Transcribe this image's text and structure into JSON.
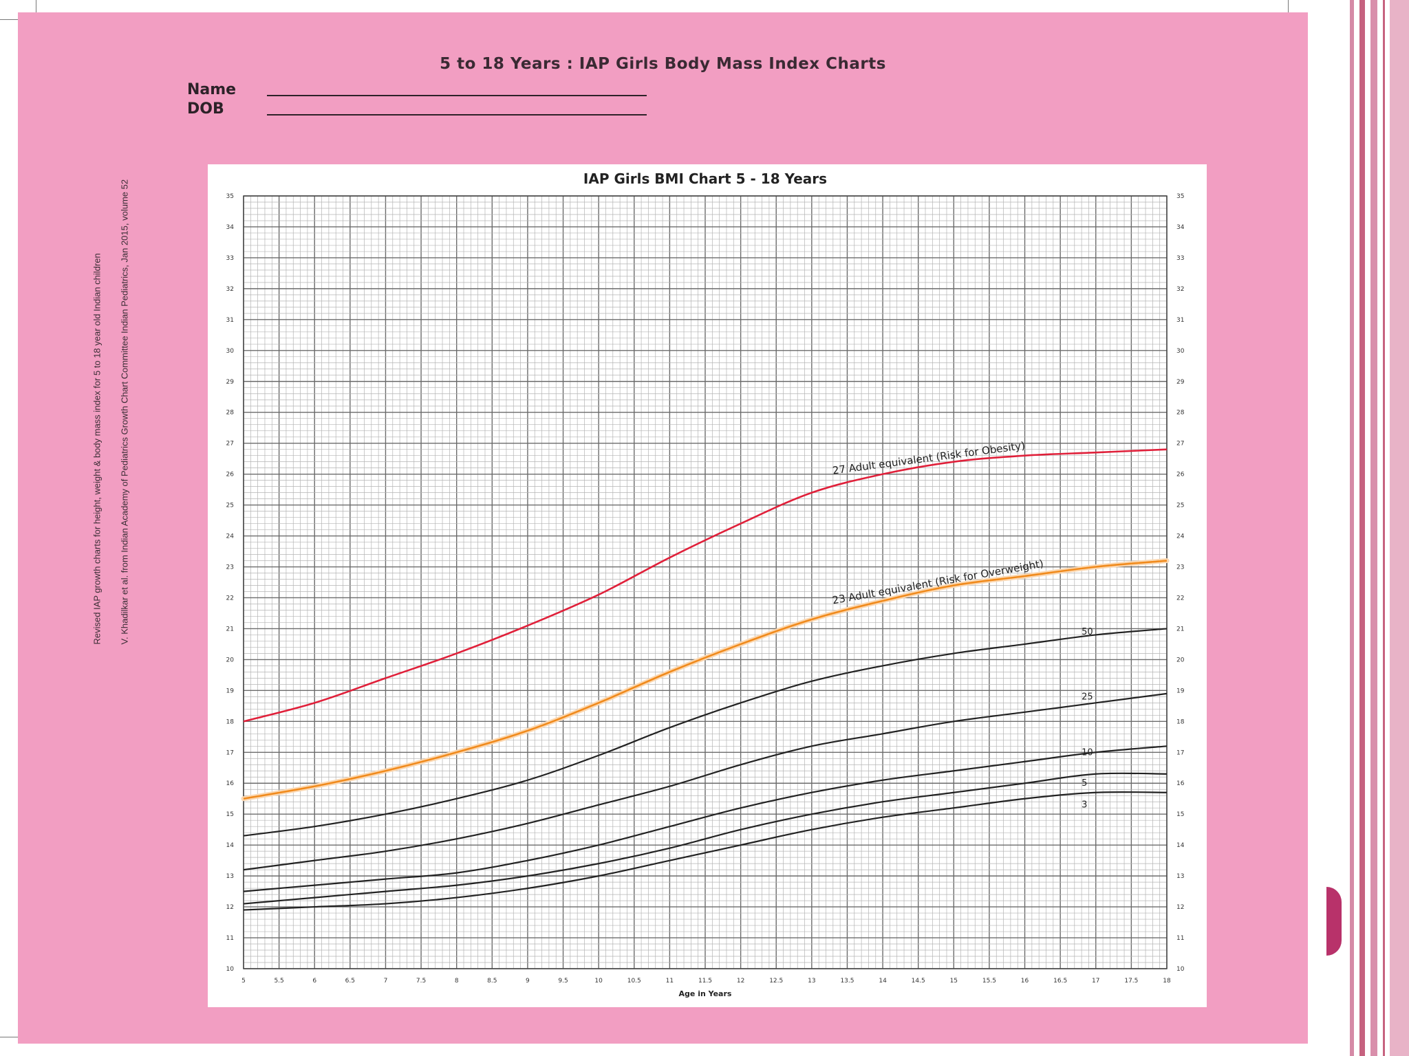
{
  "sheet": {
    "title": "5 to 18 Years : IAP Girls Body Mass Index Charts",
    "name_label": "Name",
    "dob_label": "DOB",
    "side_note_line1": "Revised IAP growth charts for height, weight & body mass index for 5 to 18 year old Indian children",
    "side_note_line2": "V. Khadilkar et al. from Indian Academy of Pediatrics Growth Chart Committee Indian Pediatrics, Jan 2015, volume 52"
  },
  "colors": {
    "sheet_background": "#f29ec2",
    "obesity_line": "#e0203a",
    "overweight_line": "#f08a1c",
    "percentile_line": "#222222",
    "accent_bar": "#b8326a"
  },
  "chart_data": {
    "type": "line",
    "title": "IAP Girls BMI Chart 5 - 18 Years",
    "xlabel": "Age in Years",
    "ylabel": "",
    "xlim": [
      5,
      18
    ],
    "ylim": [
      10,
      35
    ],
    "x_ticks": [
      "5",
      "5.5",
      "6",
      "6.5",
      "7",
      "7.5",
      "8",
      "8.5",
      "9",
      "9.5",
      "10",
      "10.5",
      "11",
      "11.5",
      "12",
      "12.5",
      "13",
      "13.5",
      "14",
      "14.5",
      "15",
      "15.5",
      "16",
      "16.5",
      "17",
      "17.5",
      "18"
    ],
    "y_ticks": [
      "10",
      "11",
      "12",
      "13",
      "14",
      "15",
      "16",
      "17",
      "18",
      "19",
      "20",
      "21",
      "22",
      "23",
      "24",
      "25",
      "26",
      "27",
      "28",
      "29",
      "30",
      "31",
      "32",
      "33",
      "34",
      "35"
    ],
    "grid": true,
    "x": [
      5,
      6,
      7,
      8,
      9,
      10,
      11,
      12,
      13,
      14,
      15,
      16,
      17,
      18
    ],
    "series": [
      {
        "name": "27 Adult equivalent (Risk for Obesity)",
        "color": "#e0203a",
        "values": [
          18.0,
          18.6,
          19.4,
          20.2,
          21.1,
          22.1,
          23.3,
          24.4,
          25.4,
          26.0,
          26.4,
          26.6,
          26.7,
          26.8
        ]
      },
      {
        "name": "23 Adult equivalent (Risk for Overweight)",
        "color": "#f08a1c",
        "values": [
          15.5,
          15.9,
          16.4,
          17.0,
          17.7,
          18.6,
          19.6,
          20.5,
          21.3,
          21.9,
          22.4,
          22.7,
          23.0,
          23.2
        ]
      },
      {
        "name": "50",
        "color": "#222222",
        "values": [
          14.3,
          14.6,
          15.0,
          15.5,
          16.1,
          16.9,
          17.8,
          18.6,
          19.3,
          19.8,
          20.2,
          20.5,
          20.8,
          21.0
        ]
      },
      {
        "name": "25",
        "color": "#222222",
        "values": [
          13.2,
          13.5,
          13.8,
          14.2,
          14.7,
          15.3,
          15.9,
          16.6,
          17.2,
          17.6,
          18.0,
          18.3,
          18.6,
          18.9
        ]
      },
      {
        "name": "10",
        "color": "#222222",
        "values": [
          12.5,
          12.7,
          12.9,
          13.1,
          13.5,
          14.0,
          14.6,
          15.2,
          15.7,
          16.1,
          16.4,
          16.7,
          17.0,
          17.2
        ]
      },
      {
        "name": "5",
        "color": "#222222",
        "values": [
          12.1,
          12.3,
          12.5,
          12.7,
          13.0,
          13.4,
          13.9,
          14.5,
          15.0,
          15.4,
          15.7,
          16.0,
          16.3,
          16.3
        ]
      },
      {
        "name": "3",
        "color": "#222222",
        "values": [
          11.9,
          12.0,
          12.1,
          12.3,
          12.6,
          13.0,
          13.5,
          14.0,
          14.5,
          14.9,
          15.2,
          15.5,
          15.7,
          15.7
        ]
      }
    ]
  }
}
